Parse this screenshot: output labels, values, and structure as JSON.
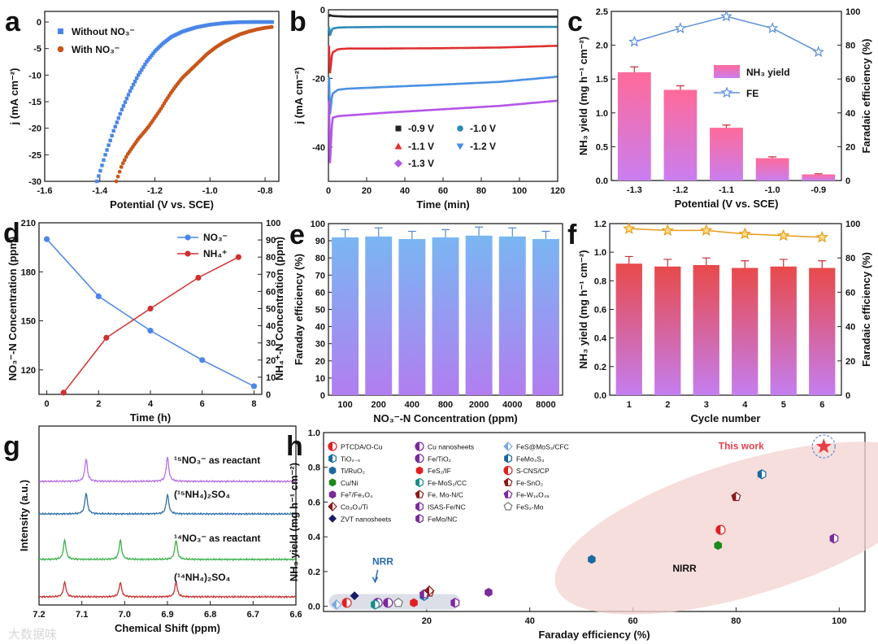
{
  "chart_data": [
    {
      "id": "a",
      "type": "line",
      "panel_label": "a",
      "xlabel": "Potential (V vs. SCE)",
      "ylabel": "j (mA cm⁻²)",
      "xlim": [
        -1.6,
        -0.75
      ],
      "ylim": [
        -30,
        2
      ],
      "x_ticks": [
        "-1.6",
        "-1.4",
        "-1.2",
        "-1.0",
        "-0.8"
      ],
      "y_ticks": [
        "0",
        "-5",
        "-10",
        "-15",
        "-20",
        "-25",
        "-30"
      ],
      "series": [
        {
          "name": "Without NO₃⁻",
          "color": "#4a86e8",
          "x": [
            -1.41,
            -1.38,
            -1.35,
            -1.32,
            -1.29,
            -1.26,
            -1.23,
            -1.2,
            -1.17,
            -1.14,
            -1.1,
            -1.05,
            -1.0,
            -0.95,
            -0.9,
            -0.85,
            -0.8,
            -0.77
          ],
          "y": [
            -30,
            -25,
            -20.5,
            -16.5,
            -13,
            -10,
            -7.5,
            -5.5,
            -4,
            -2.8,
            -1.8,
            -1.0,
            -0.5,
            -0.2,
            -0.05,
            0,
            0,
            0
          ]
        },
        {
          "name": "With NO₃⁻",
          "color": "#c8561a",
          "x": [
            -1.34,
            -1.32,
            -1.3,
            -1.28,
            -1.26,
            -1.24,
            -1.22,
            -1.2,
            -1.18,
            -1.16,
            -1.14,
            -1.12,
            -1.1,
            -1.07,
            -1.04,
            -1.01,
            -0.98,
            -0.95,
            -0.92,
            -0.89,
            -0.86,
            -0.83,
            -0.8,
            -0.77
          ],
          "y": [
            -30,
            -27,
            -25,
            -23.5,
            -22,
            -20.8,
            -19.5,
            -18,
            -16.5,
            -14.8,
            -13.2,
            -11.8,
            -10.5,
            -9,
            -7.5,
            -6,
            -4.8,
            -3.8,
            -3,
            -2.3,
            -1.8,
            -1.4,
            -1.1,
            -0.9
          ]
        }
      ]
    },
    {
      "id": "b",
      "type": "line",
      "panel_label": "b",
      "xlabel": "Time (min)",
      "ylabel": "j (mA cm⁻²)",
      "xlim": [
        0,
        120
      ],
      "ylim": [
        -50,
        0
      ],
      "x_ticks": [
        "0",
        "20",
        "40",
        "60",
        "80",
        "100",
        "120"
      ],
      "y_ticks": [
        "0",
        "-20",
        "-40"
      ],
      "series": [
        {
          "name": "-0.9 V",
          "color": "#222222",
          "x": [
            0.5,
            2,
            5,
            10,
            30,
            60,
            90,
            120
          ],
          "y": [
            -1.5,
            -1.8,
            -1.9,
            -2,
            -2,
            -2,
            -2,
            -2
          ]
        },
        {
          "name": "-1.0 V",
          "color": "#2e8ab8",
          "x": [
            0.5,
            2,
            5,
            10,
            30,
            60,
            90,
            120
          ],
          "y": [
            -8,
            -5.5,
            -5.2,
            -5.1,
            -5,
            -5,
            -5,
            -5
          ]
        },
        {
          "name": "-1.1 V",
          "color": "#e03030",
          "x": [
            0.5,
            2,
            5,
            10,
            30,
            60,
            90,
            120
          ],
          "y": [
            -20,
            -12.5,
            -11.5,
            -11.3,
            -11.3,
            -11.2,
            -11,
            -10.5
          ]
        },
        {
          "name": "-1.2 V",
          "color": "#4a90e2",
          "x": [
            0.5,
            2,
            5,
            10,
            30,
            60,
            90,
            120
          ],
          "y": [
            -32,
            -24.5,
            -23.3,
            -23,
            -22.5,
            -21.8,
            -21,
            -19.5
          ]
        },
        {
          "name": "-1.3 V",
          "color": "#b455e8",
          "x": [
            0.5,
            2,
            5,
            10,
            30,
            60,
            90,
            120
          ],
          "y": [
            -48,
            -31.5,
            -31,
            -30.8,
            -30,
            -29,
            -28,
            -26.5
          ]
        }
      ]
    },
    {
      "id": "c",
      "type": "bar",
      "panel_label": "c",
      "xlabel": "Potential (V vs. SCE)",
      "ylabel": "NH₃ yield (mg h⁻¹ cm⁻²)",
      "y2label": "Faradaic efficiency (%)",
      "categories": [
        "-1.3",
        "-1.2",
        "-1.1",
        "-1.0",
        "-0.9"
      ],
      "ylim": [
        0,
        2.5
      ],
      "y2lim": [
        0,
        100
      ],
      "y_ticks": [
        "0.0",
        "0.5",
        "1.0",
        "1.5",
        "2.0",
        "2.5"
      ],
      "y2_ticks": [
        "0",
        "20",
        "40",
        "60",
        "80",
        "100"
      ],
      "series": [
        {
          "name": "NH₃ yield",
          "kind": "bar",
          "values": [
            1.6,
            1.34,
            0.78,
            0.33,
            0.09
          ],
          "errors": [
            0.08,
            0.06,
            0.04,
            0.02,
            0.01
          ]
        },
        {
          "name": "FE",
          "kind": "line",
          "axis": "right",
          "color": "#5b8fd8",
          "values": [
            82,
            90,
            97,
            90,
            76
          ]
        }
      ]
    },
    {
      "id": "d",
      "type": "line",
      "panel_label": "d",
      "xlabel": "Time (h)",
      "ylabel": "NO₃⁻-N Concentration (ppm)",
      "y2label": "NH₄⁺-N Concentration (ppm)",
      "xlim": [
        -0.3,
        8.3
      ],
      "ylim": [
        105,
        210
      ],
      "y2lim": [
        0,
        100
      ],
      "x_ticks": [
        "0",
        "2",
        "4",
        "6",
        "8"
      ],
      "y_ticks": [
        "120",
        "150",
        "180",
        "210"
      ],
      "y2_ticks": [
        "0",
        "10",
        "20",
        "30",
        "40",
        "50",
        "60",
        "70",
        "80",
        "90",
        "100"
      ],
      "series": [
        {
          "name": "NO₃⁻",
          "axis": "left",
          "color": "#4a86e8",
          "x": [
            0,
            2,
            4,
            6,
            8
          ],
          "y": [
            200,
            165,
            144,
            126,
            110
          ]
        },
        {
          "name": "NH₄⁺",
          "axis": "right",
          "color": "#d03030",
          "x": [
            0.65,
            2.3,
            4,
            5.85,
            7.4
          ],
          "y": [
            1,
            33,
            50,
            68,
            80
          ]
        }
      ]
    },
    {
      "id": "e",
      "type": "bar",
      "panel_label": "e",
      "xlabel": "NO₃⁻-N Concentration (ppm)",
      "ylabel": "Faraday efficiency (%)",
      "categories": [
        "100",
        "200",
        "400",
        "800",
        "2000",
        "4000",
        "8000"
      ],
      "ylim": [
        0,
        100
      ],
      "y_ticks": [
        "0",
        "10",
        "20",
        "30",
        "40",
        "50",
        "60",
        "70",
        "80",
        "90",
        "100"
      ],
      "values": [
        92,
        92.5,
        91,
        92,
        93,
        92.5,
        91
      ],
      "errors": [
        4.5,
        5,
        4.5,
        4.5,
        5,
        5,
        4.5
      ]
    },
    {
      "id": "f",
      "type": "bar",
      "panel_label": "f",
      "xlabel": "Cycle number",
      "ylabel": "NH₃ yield (mg h⁻¹ cm⁻²)",
      "y2label": "Faradaic efficiency (%)",
      "categories": [
        "1",
        "2",
        "3",
        "4",
        "5",
        "6"
      ],
      "ylim": [
        0,
        1.2
      ],
      "y2lim": [
        0,
        100
      ],
      "y_ticks": [
        "0.0",
        "0.2",
        "0.4",
        "0.6",
        "0.8",
        "1.0",
        "1.2"
      ],
      "y2_ticks": [
        "0",
        "20",
        "40",
        "60",
        "80",
        "100"
      ],
      "series": [
        {
          "name": "NH₃ yield",
          "kind": "bar",
          "values": [
            0.92,
            0.9,
            0.91,
            0.89,
            0.9,
            0.89
          ],
          "errors": [
            0.05,
            0.05,
            0.05,
            0.05,
            0.05,
            0.05
          ]
        },
        {
          "name": "FE",
          "kind": "line",
          "axis": "right",
          "color": "#e89a1a",
          "values": [
            97,
            96,
            96,
            94,
            93,
            92
          ]
        }
      ]
    },
    {
      "id": "g",
      "type": "line",
      "panel_label": "g",
      "xlabel": "Chemical Shift (ppm)",
      "ylabel": "Intensity (a.u.)",
      "xlim": [
        7.2,
        6.6
      ],
      "x_ticks": [
        "7.2",
        "7.1",
        "7.0",
        "6.9",
        "6.8",
        "6.7",
        "6.6"
      ],
      "series": [
        {
          "name": "¹⁵NO₃⁻ as reactant",
          "color": "#b86fe0",
          "peaks": [
            7.09,
            6.9
          ]
        },
        {
          "name": "(¹⁵NH₄)₂SO₄",
          "color": "#2f6fa8",
          "peaks": [
            7.09,
            6.9
          ]
        },
        {
          "name": "¹⁴NO₃⁻ as reactant",
          "color": "#3bb04b",
          "peaks": [
            7.14,
            7.01,
            6.88
          ]
        },
        {
          "name": "(¹⁴NH₄)₂SO₄",
          "color": "#c83030",
          "peaks": [
            7.14,
            7.01,
            6.88
          ]
        }
      ]
    },
    {
      "id": "h",
      "type": "scatter",
      "panel_label": "h",
      "xlabel": "Faraday efficiency (%)",
      "ylabel": "NH₃ yield (mg h⁻¹ cm⁻²)",
      "xlim": [
        0,
        105
      ],
      "ylim": [
        -0.03,
        1.0
      ],
      "x_ticks": [
        "20",
        "40",
        "60",
        "80",
        "100"
      ],
      "y_ticks": [
        "0.0",
        "0.2",
        "0.4",
        "0.6",
        "0.8",
        "1.0"
      ],
      "annotations": [
        "NRR",
        "NIRR",
        "This work"
      ],
      "points": [
        {
          "name": "PTCDA/O-Cu",
          "color": "#e02020",
          "shape": "halfcircle",
          "x": 4.5,
          "y": 0.02
        },
        {
          "name": "Cu nanosheets",
          "color": "#7a2a9a",
          "shape": "halfcircle",
          "x": 10.5,
          "y": 0.02
        },
        {
          "name": "FeS@MoS₂/CFC",
          "color": "#7aa8e0",
          "shape": "halfdiamond",
          "x": 2.5,
          "y": 0.01
        },
        {
          "name": "TiO₂₋ₓ",
          "color": "#1a6aa0",
          "shape": "halfhex",
          "x": 19.5,
          "y": 0.06
        },
        {
          "name": "Fe/TiO₂",
          "color": "#7a2a9a",
          "shape": "halfcircle",
          "x": 12.5,
          "y": 0.02
        },
        {
          "name": "FeMo₃S₄",
          "color": "#1a6aa0",
          "shape": "halfhex",
          "x": 85,
          "y": 0.76
        },
        {
          "name": "Ti/RuO₂",
          "color": "#1a6aa0",
          "shape": "hex",
          "x": 52,
          "y": 0.27
        },
        {
          "name": "FeS₂/IF",
          "color": "#e02020",
          "shape": "hex",
          "x": 17.5,
          "y": 0.02
        },
        {
          "name": "S-CNS/CP",
          "color": "#e02020",
          "shape": "halfcircle",
          "x": 77,
          "y": 0.44
        },
        {
          "name": "Cu/Ni",
          "color": "#1a8a1a",
          "shape": "hex",
          "x": 76.5,
          "y": 0.35
        },
        {
          "name": "Fe-MoS₂/CC",
          "color": "#1a8a8a",
          "shape": "halfhex",
          "x": 10,
          "y": 0.01
        },
        {
          "name": "Fe-SnO₂",
          "color": "#8a1a1a",
          "shape": "halfpentagon",
          "x": 80,
          "y": 0.63
        },
        {
          "name": "Feᵀ/Fe₃O₄",
          "color": "#7a2a9a",
          "shape": "hex",
          "x": 32,
          "y": 0.08
        },
        {
          "name": "Fe, Mo-N/C",
          "color": "#8a1a1a",
          "shape": "halfpentagon",
          "x": 20.5,
          "y": 0.08
        },
        {
          "name": "Fe-W₁₈O₄₉",
          "color": "#7a2a9a",
          "shape": "halfpentagon",
          "x": 19.5,
          "y": 0.07
        },
        {
          "name": "Co₃O₄/Ti",
          "color": "#8a1a1a",
          "shape": "halfdiamond",
          "x": 20.5,
          "y": 0.09
        },
        {
          "name": "ISAS-Fe/NC",
          "color": "#7a2a9a",
          "shape": "halfhex",
          "x": 99,
          "y": 0.39
        },
        {
          "name": "FeS₂-Mo",
          "color": "#777777",
          "shape": "openpentagon",
          "x": 14.5,
          "y": 0.02
        },
        {
          "name": "ZVT nanosheets",
          "color": "#1a1a6a",
          "shape": "diamond",
          "x": 6,
          "y": 0.06
        },
        {
          "name": "FeMo/NC",
          "color": "#7a2a9a",
          "shape": "halfhex",
          "x": 25.5,
          "y": 0.02
        },
        {
          "name": "This work",
          "color": "#e8404a",
          "shape": "star",
          "x": 97,
          "y": 0.92
        }
      ]
    }
  ],
  "watermark": "大数据味"
}
